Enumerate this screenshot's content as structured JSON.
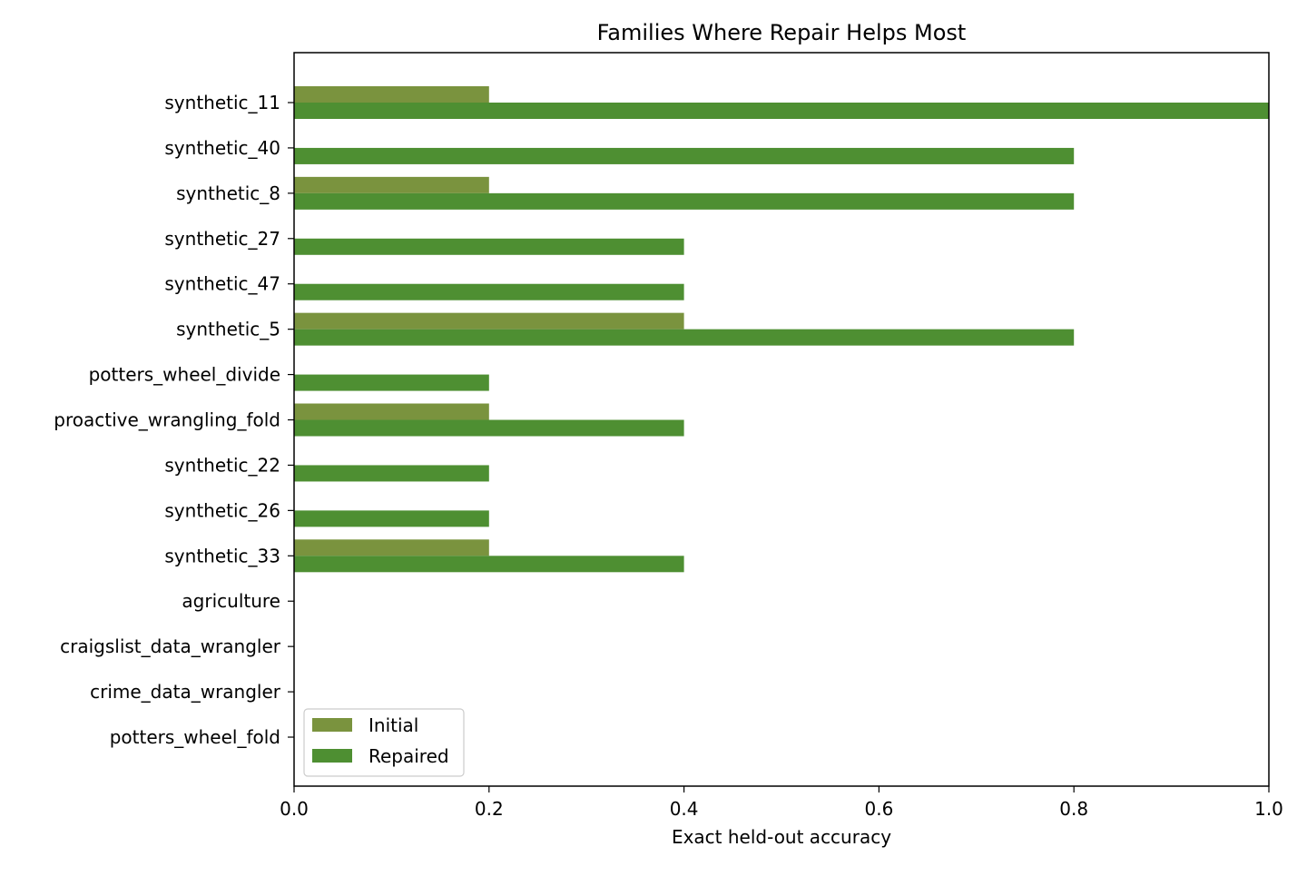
{
  "chart_data": {
    "type": "bar",
    "orientation": "horizontal",
    "title": "Families Where Repair Helps Most",
    "xlabel": "Exact held-out accuracy",
    "ylabel": "",
    "xlim": [
      0,
      1
    ],
    "xticks": [
      0.0,
      0.2,
      0.4,
      0.6,
      0.8,
      1.0
    ],
    "xtick_labels": [
      "0.0",
      "0.2",
      "0.4",
      "0.6",
      "0.8",
      "1.0"
    ],
    "grid": false,
    "legend_position": "lower-left",
    "categories": [
      "synthetic_11",
      "synthetic_40",
      "synthetic_8",
      "synthetic_27",
      "synthetic_47",
      "synthetic_5",
      "potters_wheel_divide",
      "proactive_wrangling_fold",
      "synthetic_22",
      "synthetic_26",
      "synthetic_33",
      "agriculture",
      "craigslist_data_wrangler",
      "crime_data_wrangler",
      "potters_wheel_fold"
    ],
    "series": [
      {
        "name": "Initial",
        "color": "#7a933e",
        "values": [
          0.2,
          0.0,
          0.2,
          0.0,
          0.0,
          0.4,
          0.0,
          0.2,
          0.0,
          0.0,
          0.2,
          0.0,
          0.0,
          0.0,
          0.0
        ]
      },
      {
        "name": "Repaired",
        "color": "#4e8f32",
        "values": [
          1.0,
          0.8,
          0.8,
          0.4,
          0.4,
          0.8,
          0.2,
          0.4,
          0.2,
          0.2,
          0.4,
          0.0,
          0.0,
          0.0,
          0.0
        ]
      }
    ]
  }
}
